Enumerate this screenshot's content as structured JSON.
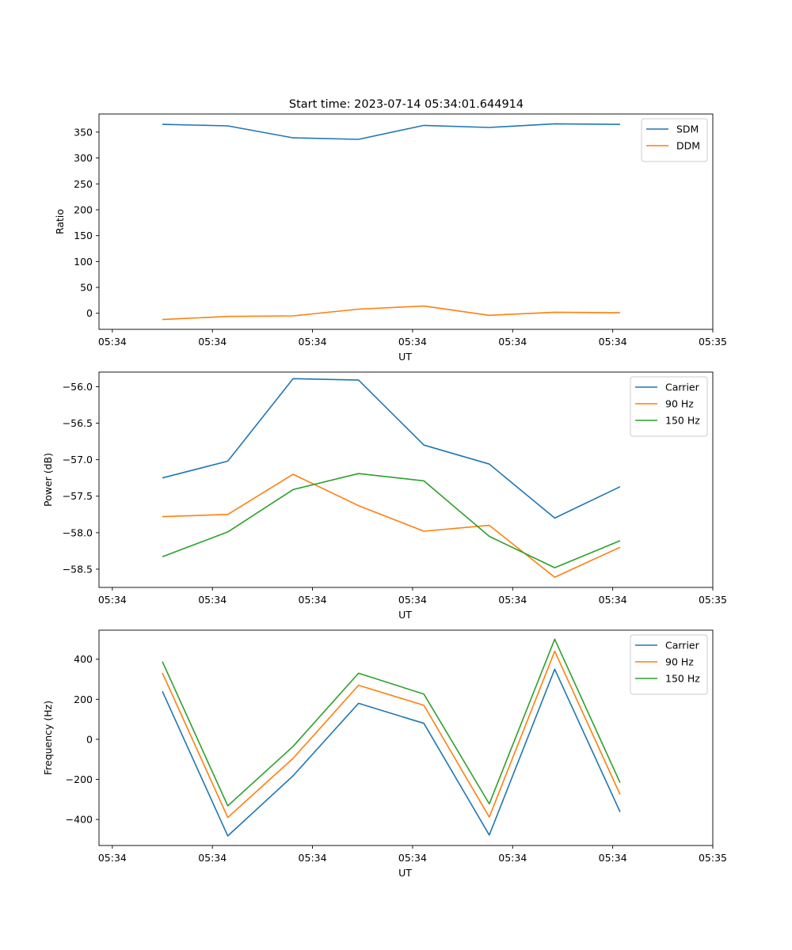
{
  "figure": {
    "title": "Start time: 2023-07-14 05:34:01.644914"
  },
  "colors": {
    "blue": "#1f77b4",
    "orange": "#ff7f0e",
    "green": "#2ca02c"
  },
  "chart_data": [
    {
      "id": "ratio",
      "type": "line",
      "ylabel": "Ratio",
      "xlabel": "UT",
      "xlim": [
        -0.2,
        9.0
      ],
      "ylim": [
        -31,
        385
      ],
      "x_ticks": [
        0,
        1.5,
        3,
        4.5,
        6,
        7.5,
        9
      ],
      "x_tick_labels": [
        "05:34",
        "05:34",
        "05:34",
        "05:34",
        "05:34",
        "05:34",
        "05:35"
      ],
      "y_ticks": [
        0,
        50,
        100,
        150,
        200,
        250,
        300,
        350
      ],
      "y_tick_labels": [
        "0",
        "50",
        "100",
        "150",
        "200",
        "250",
        "300",
        "350"
      ],
      "x": [
        0.75,
        1.73,
        2.71,
        3.69,
        4.67,
        5.65,
        6.63,
        7.61
      ],
      "series": [
        {
          "name": "SDM",
          "color": "#1f77b4",
          "values": [
            365,
            362,
            339,
            336,
            363,
            359,
            366,
            365
          ]
        },
        {
          "name": "DDM",
          "color": "#ff7f0e",
          "values": [
            -12,
            -6,
            -5,
            8,
            14,
            -4,
            2,
            1
          ]
        }
      ]
    },
    {
      "id": "power",
      "type": "line",
      "ylabel": "Power (dB)",
      "xlabel": "UT",
      "xlim": [
        -0.2,
        9.0
      ],
      "ylim": [
        -58.75,
        -55.8
      ],
      "x_ticks": [
        0,
        1.5,
        3,
        4.5,
        6,
        7.5,
        9
      ],
      "x_tick_labels": [
        "05:34",
        "05:34",
        "05:34",
        "05:34",
        "05:34",
        "05:34",
        "05:35"
      ],
      "y_ticks": [
        -56.0,
        -56.5,
        -57.0,
        -57.5,
        -58.0,
        -58.5
      ],
      "y_tick_labels": [
        "−56.0",
        "−56.5",
        "−57.0",
        "−57.5",
        "−58.0",
        "−58.5"
      ],
      "x": [
        0.75,
        1.73,
        2.71,
        3.69,
        4.67,
        5.65,
        6.63,
        7.61
      ],
      "series": [
        {
          "name": "Carrier",
          "color": "#1f77b4",
          "values": [
            -57.25,
            -57.02,
            -55.89,
            -55.91,
            -56.8,
            -57.06,
            -57.8,
            -57.37
          ]
        },
        {
          "name": "90 Hz",
          "color": "#ff7f0e",
          "values": [
            -57.78,
            -57.75,
            -57.2,
            -57.63,
            -57.98,
            -57.9,
            -58.61,
            -58.2
          ]
        },
        {
          "name": "150 Hz",
          "color": "#2ca02c",
          "values": [
            -58.33,
            -57.99,
            -57.41,
            -57.19,
            -57.29,
            -58.05,
            -58.48,
            -58.11
          ]
        }
      ]
    },
    {
      "id": "frequency",
      "type": "line",
      "ylabel": "Frequency (Hz)",
      "xlabel": "UT",
      "xlim": [
        -0.2,
        9.0
      ],
      "ylim": [
        -530,
        545
      ],
      "x_ticks": [
        0,
        1.5,
        3,
        4.5,
        6,
        7.5,
        9
      ],
      "x_tick_labels": [
        "05:34",
        "05:34",
        "05:34",
        "05:34",
        "05:34",
        "05:34",
        "05:35"
      ],
      "y_ticks": [
        -400,
        -200,
        0,
        200,
        400
      ],
      "y_tick_labels": [
        "−400",
        "−200",
        "0",
        "200",
        "400"
      ],
      "x": [
        0.75,
        1.73,
        2.71,
        3.69,
        4.67,
        5.65,
        6.63,
        7.61
      ],
      "series": [
        {
          "name": "Carrier",
          "color": "#1f77b4",
          "values": [
            240,
            -482,
            -182,
            180,
            80,
            -478,
            350,
            -362
          ]
        },
        {
          "name": "90 Hz",
          "color": "#ff7f0e",
          "values": [
            332,
            -390,
            -95,
            270,
            170,
            -388,
            440,
            -275
          ]
        },
        {
          "name": "150 Hz",
          "color": "#2ca02c",
          "values": [
            388,
            -332,
            -35,
            330,
            226,
            -322,
            500,
            -216
          ]
        }
      ]
    }
  ]
}
